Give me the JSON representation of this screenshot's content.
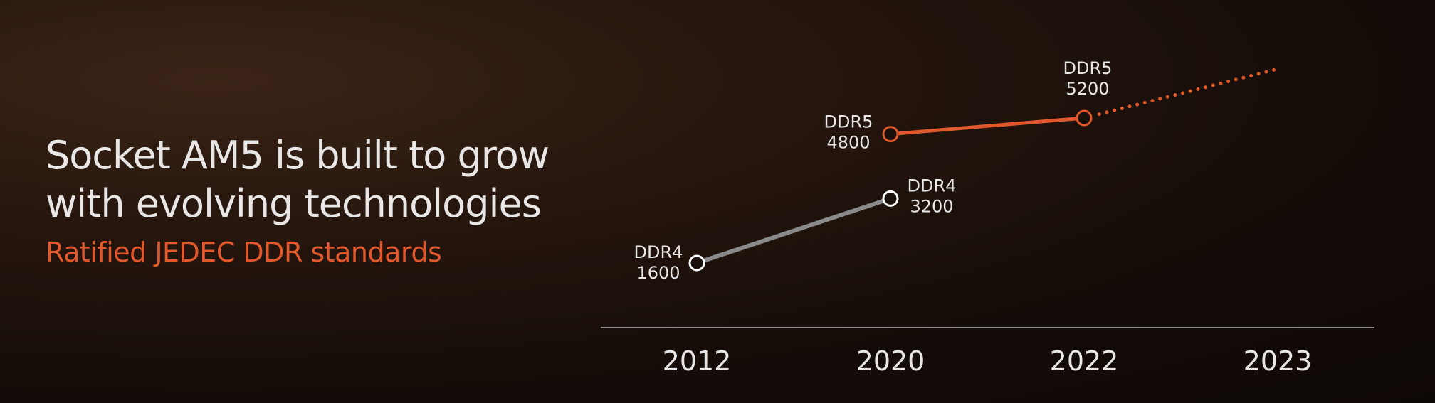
{
  "headline": {
    "line1": "Socket AM5 is built to grow",
    "line2": "with evolving technologies"
  },
  "subheadline": "Ratified JEDEC DDR standards",
  "colors": {
    "accent": "#e0582b",
    "ddr4_line": "#8a8a8a",
    "text": "#e9e7e6",
    "axis": "#bdbdbd"
  },
  "chart_data": {
    "type": "line",
    "categories": [
      "2012",
      "2020",
      "2022",
      "2023"
    ],
    "xlabel": "",
    "ylabel": "",
    "grid": false,
    "legend": "none",
    "series": [
      {
        "points": [
          {
            "x": "2012",
            "y": 1600,
            "label_top": "DDR4",
            "label_bottom": "1600"
          },
          {
            "x": "2020",
            "y": 3200,
            "label_top": "DDR4",
            "label_bottom": "3200"
          }
        ]
      },
      {
        "points": [
          {
            "x": "2020",
            "y": 4800,
            "label_top": "DDR5",
            "label_bottom": "4800"
          },
          {
            "x": "2022",
            "y": 5200,
            "label_top": "DDR5",
            "label_bottom": "5200"
          }
        ],
        "projected_to": "2023"
      }
    ]
  }
}
